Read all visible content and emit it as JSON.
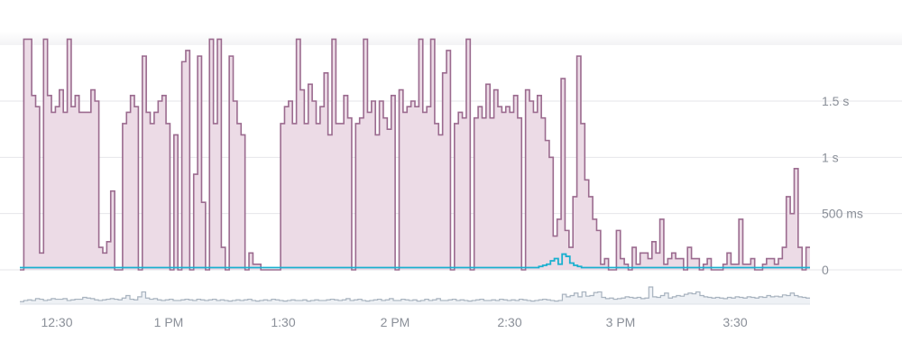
{
  "chart_data": {
    "type": "area",
    "title": "",
    "xlabel": "",
    "ylabel": "",
    "x_ticks": [
      "12:30",
      "1 PM",
      "1:30",
      "2 PM",
      "2:30",
      "3 PM",
      "3:30"
    ],
    "y_ticks": [
      "0",
      "500 ms",
      "1 s",
      "1.5 s"
    ],
    "ylim": [
      0,
      2
    ],
    "y_unit": "seconds",
    "x_unit": "minutes after 12:30",
    "colors": {
      "primary_fill": "#ecdbe6",
      "primary_line": "#9b6b8f",
      "secondary_line": "#1ab0cf",
      "mini_fill": "#eef1f5",
      "mini_line": "#a8b3bf",
      "grid": "#e6e6ea"
    },
    "series": [
      {
        "values": [
          0,
          2.05,
          2.05,
          1.55,
          1.45,
          0.15,
          2.05,
          1.55,
          1.4,
          1.45,
          1.6,
          1.4,
          2.05,
          1.45,
          1.55,
          1.4,
          1.4,
          1.4,
          1.6,
          1.5,
          0.2,
          0.15,
          0.25,
          0.7,
          0.0,
          0.0,
          1.3,
          1.4,
          1.55,
          1.45,
          0.0,
          1.9,
          1.4,
          1.3,
          1.4,
          1.5,
          1.55,
          1.3,
          0.0,
          1.2,
          0.0,
          1.85,
          1.95,
          0.0,
          0.85,
          1.9,
          0.6,
          0.0,
          2.05,
          1.3,
          2.05,
          0.2,
          0.0,
          1.9,
          1.5,
          1.3,
          1.2,
          0.0,
          0.15,
          0.05,
          0.05,
          0.0,
          0.0,
          0.0,
          0.0,
          0.0,
          1.3,
          1.45,
          1.5,
          1.3,
          2.05,
          1.6,
          1.3,
          1.65,
          1.5,
          1.3,
          1.45,
          1.75,
          1.2,
          2.05,
          1.3,
          1.3,
          1.55,
          1.35,
          0.0,
          1.3,
          1.35,
          2.05,
          1.4,
          1.5,
          1.2,
          1.5,
          1.35,
          1.25,
          1.55,
          0.0,
          1.6,
          1.4,
          1.45,
          1.5,
          1.45,
          2.05,
          1.4,
          1.45,
          2.05,
          1.3,
          1.2,
          1.75,
          1.95,
          0.0,
          1.3,
          1.4,
          1.35,
          2.05,
          0.0,
          1.35,
          1.45,
          1.35,
          1.65,
          1.35,
          1.6,
          1.45,
          1.4,
          1.45,
          1.4,
          1.55,
          1.35,
          0.0,
          1.6,
          1.5,
          1.4,
          1.55,
          1.35,
          1.15,
          1.0,
          0.3,
          0.45,
          1.7,
          0.35,
          0.2,
          0.65,
          1.9,
          1.3,
          0.8,
          0.65,
          0.45,
          0.35,
          0.05,
          0.1,
          0.0,
          0.0,
          0.35,
          0.1,
          0.05,
          0.0,
          0.2,
          0.05,
          0.15,
          0.15,
          0.1,
          0.25,
          0.15,
          0.45,
          0.05,
          0.1,
          0.15,
          0.1,
          0.1,
          0.0,
          0.2,
          0.1,
          0.1,
          0.0,
          0.05,
          0.1,
          0.0,
          0.0,
          0.0,
          0.05,
          0.15,
          0.05,
          0.05,
          0.45,
          0.05,
          0.05,
          0.1,
          0.0,
          0.0,
          0.05,
          0.1,
          0.1,
          0.05,
          0.1,
          0.2,
          0.65,
          0.5,
          0.9,
          0.2,
          0.0,
          0.2
        ]
      },
      {
        "values": [
          0.02,
          0.02,
          0.02,
          0.02,
          0.02,
          0.02,
          0.02,
          0.02,
          0.02,
          0.02,
          0.02,
          0.02,
          0.02,
          0.02,
          0.02,
          0.02,
          0.02,
          0.02,
          0.02,
          0.02,
          0.02,
          0.02,
          0.02,
          0.02,
          0.02,
          0.02,
          0.02,
          0.02,
          0.02,
          0.02,
          0.02,
          0.02,
          0.02,
          0.02,
          0.02,
          0.02,
          0.02,
          0.02,
          0.02,
          0.02,
          0.02,
          0.02,
          0.02,
          0.02,
          0.02,
          0.02,
          0.02,
          0.02,
          0.02,
          0.02,
          0.02,
          0.02,
          0.02,
          0.02,
          0.02,
          0.02,
          0.02,
          0.02,
          0.02,
          0.02,
          0.02,
          0.02,
          0.02,
          0.02,
          0.02,
          0.02,
          0.02,
          0.02,
          0.02,
          0.02,
          0.02,
          0.02,
          0.02,
          0.02,
          0.02,
          0.02,
          0.02,
          0.02,
          0.02,
          0.02,
          0.02,
          0.02,
          0.02,
          0.02,
          0.02,
          0.02,
          0.02,
          0.02,
          0.02,
          0.02,
          0.02,
          0.02,
          0.02,
          0.02,
          0.02,
          0.02,
          0.02,
          0.02,
          0.02,
          0.02,
          0.02,
          0.02,
          0.02,
          0.02,
          0.02,
          0.02,
          0.02,
          0.02,
          0.02,
          0.02,
          0.02,
          0.02,
          0.02,
          0.02,
          0.02,
          0.02,
          0.02,
          0.02,
          0.02,
          0.02,
          0.02,
          0.02,
          0.02,
          0.02,
          0.02,
          0.02,
          0.02,
          0.02,
          0.02,
          0.02,
          0.02,
          0.02,
          0.02,
          0.02,
          0.03,
          0.04,
          0.05,
          0.08,
          0.1,
          0.05,
          0.14,
          0.12,
          0.06,
          0.04,
          0.03,
          0.02,
          0.02,
          0.02,
          0.02,
          0.02,
          0.02,
          0.02,
          0.02,
          0.02,
          0.02,
          0.02,
          0.02,
          0.02,
          0.02,
          0.02,
          0.02,
          0.02,
          0.02,
          0.02,
          0.02,
          0.02,
          0.02,
          0.02,
          0.02,
          0.02,
          0.02,
          0.02,
          0.02,
          0.02,
          0.02,
          0.02,
          0.02,
          0.02,
          0.02,
          0.02,
          0.02,
          0.02,
          0.02,
          0.02,
          0.02,
          0.02,
          0.02,
          0.02,
          0.02,
          0.02,
          0.02,
          0.02,
          0.02,
          0.02,
          0.02,
          0.02,
          0.02,
          0.02,
          0.02,
          0.02,
          0.02,
          0.02,
          0.02,
          0.02
        ]
      }
    ],
    "mini_series": [
      0.2,
      0.3,
      0.35,
      0.3,
      0.45,
      0.4,
      0.3,
      0.35,
      0.45,
      0.4,
      0.4,
      0.45,
      0.3,
      0.35,
      0.4,
      0.4,
      0.55,
      0.5,
      0.45,
      0.35,
      0.3,
      0.35,
      0.4,
      0.45,
      0.4,
      0.35,
      0.5,
      0.7,
      0.4,
      0.35,
      0.6,
      1.0,
      0.5,
      0.4,
      0.45,
      0.35,
      0.3,
      0.35,
      0.4,
      0.3,
      0.3,
      0.35,
      0.4,
      0.35,
      0.3,
      0.4,
      0.35,
      0.3,
      0.35,
      0.4,
      0.3,
      0.35,
      0.3,
      0.25,
      0.3,
      0.35,
      0.3,
      0.35,
      0.4,
      0.3,
      0.25,
      0.3,
      0.35,
      0.3,
      0.4,
      0.35,
      0.3,
      0.25,
      0.3,
      0.35,
      0.3,
      0.3,
      0.35,
      0.25,
      0.3,
      0.35,
      0.3,
      0.3,
      0.35,
      0.4,
      0.35,
      0.3,
      0.35,
      0.45,
      0.3,
      0.35,
      0.4,
      0.3,
      0.25,
      0.3,
      0.35,
      0.4,
      0.3,
      0.35,
      0.45,
      0.3,
      0.3,
      0.4,
      0.35,
      0.3,
      0.35,
      0.25,
      0.3,
      0.4,
      0.3,
      0.35,
      0.45,
      0.3,
      0.3,
      0.35,
      0.4,
      0.3,
      0.35,
      0.3,
      0.25,
      0.3,
      0.35,
      0.4,
      0.3,
      0.3,
      0.35,
      0.3,
      0.4,
      0.35,
      0.3,
      0.35,
      0.3,
      0.4,
      0.35,
      0.3,
      0.25,
      0.3,
      0.35,
      0.4,
      0.35,
      0.3,
      0.25,
      0.3,
      0.8,
      0.6,
      0.7,
      0.9,
      0.6,
      1.0,
      0.65,
      0.7,
      0.95,
      1.0,
      0.55,
      0.45,
      0.5,
      0.4,
      0.45,
      0.5,
      0.6,
      0.55,
      0.5,
      0.55,
      0.45,
      0.5,
      1.4,
      0.6,
      0.55,
      0.7,
      0.9,
      0.5,
      0.6,
      0.7,
      0.65,
      0.8,
      0.9,
      0.85,
      1.0,
      0.7,
      0.6,
      0.55,
      0.5,
      0.55,
      0.5,
      0.45,
      0.55,
      0.5,
      0.6,
      0.55,
      0.5,
      0.6,
      0.55,
      0.5,
      0.6,
      0.55,
      0.7,
      0.6,
      0.65,
      0.6,
      0.75,
      0.7,
      0.9,
      0.7,
      0.6,
      0.55,
      0.5
    ]
  }
}
